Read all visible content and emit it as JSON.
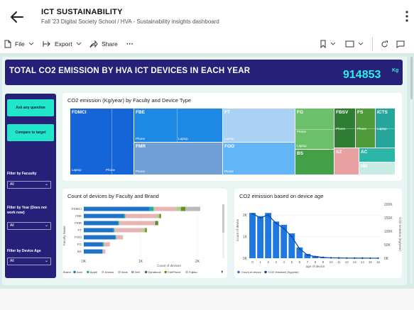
{
  "app": {
    "title": "ICT SUSTAINABILITY",
    "subtitle": "Fall '23 Digital Society School / HVA - Sustainability insights dashboard"
  },
  "toolbar": {
    "file_label": "File",
    "export_label": "Export",
    "share_label": "Share",
    "more_label": "···"
  },
  "banner": {
    "title": "TOTAL CO2 EMISSION BY HVA ICT DEVICES IN EACH YEAR",
    "value": "914853",
    "unit": "Kg"
  },
  "sidebar": {
    "ask_button": "Ask any question",
    "compare_button": "Compare to target",
    "faculty_filter_label": "Filter by Facuulty",
    "faculty_filter_value": "All",
    "year_filter_label": "Filter by Year (Does not work now)",
    "year_filter_value": "All",
    "age_filter_label": "Filter by Device Age",
    "age_filter_value": "All"
  },
  "treemap": {
    "title": "CO2 emission (Kg/year) by Faculty and Device Type",
    "tiles": [
      {
        "id": "fdmci",
        "label": "FDMCI",
        "subs": [
          "Laptop",
          "Phone"
        ],
        "color": "#1565d8"
      },
      {
        "id": "fbe",
        "label": "FBE",
        "subs": [
          "Phone",
          "Laptop"
        ],
        "color": "#1e88e5"
      },
      {
        "id": "fmr",
        "label": "FMR",
        "subs": [
          "Phone"
        ],
        "color": "#6f9fd6"
      },
      {
        "id": "ft",
        "label": "FT",
        "subs": [
          "Laptop"
        ],
        "color": "#a9d2f5"
      },
      {
        "id": "foo",
        "label": "FOO",
        "subs": [
          "Phone"
        ],
        "color": "#64b5f6"
      },
      {
        "id": "fg",
        "label": "FG",
        "subs": [
          "Phone",
          "Laptop"
        ],
        "color": "#6cc06a"
      },
      {
        "id": "bs",
        "label": "BS",
        "subs": [],
        "color": "#43a047"
      },
      {
        "id": "fbsv",
        "label": "FBSV",
        "subs": [
          "Phone"
        ],
        "color": "#2e7d32"
      },
      {
        "id": "fs",
        "label": "FS",
        "subs": [
          "Phone"
        ],
        "color": "#4f9a3a"
      },
      {
        "id": "icts",
        "label": "ICTS",
        "subs": [
          "Laptop"
        ],
        "color": "#26a69a"
      },
      {
        "id": "sz",
        "label": "SZ",
        "subs": [],
        "color": "#e8a0a0"
      },
      {
        "id": "ac",
        "label": "AC",
        "subs": [],
        "color": "#2bb7a8"
      },
      {
        "id": "hb",
        "label": "HB",
        "subs": [],
        "color": "#c8ebe6"
      }
    ]
  },
  "bar_chart": {
    "title": "Count of devices by Faculty and Brand",
    "ylabel": "Faculty Name",
    "xlabel": "Count of devices",
    "legend_title": "Brand",
    "brands": [
      {
        "name": "Acer",
        "color": "#1e73c8"
      },
      {
        "name": "Apple",
        "color": "#17b39c"
      },
      {
        "name": "Archos",
        "color": "#e8b5b5"
      },
      {
        "name": "Asus",
        "color": "#a8d08d"
      },
      {
        "name": "Dell",
        "color": "#7aa6d6"
      },
      {
        "name": "Dynabook",
        "color": "#3b7a3b"
      },
      {
        "name": "FairPhone",
        "color": "#6b8e23"
      },
      {
        "name": "Fujitsu",
        "color": "#bbbbbb"
      }
    ],
    "x_ticks": [
      "0K",
      "1K",
      "2K"
    ],
    "rows": [
      {
        "faculty": "FDMCI",
        "values": [
          1160,
          70,
          400,
          80,
          0,
          0,
          80,
          260
        ]
      },
      {
        "faculty": "FBE",
        "values": [
          700,
          30,
          560,
          40,
          0,
          0,
          30,
          0
        ]
      },
      {
        "faculty": "FMR",
        "values": [
          600,
          20,
          620,
          20,
          0,
          20,
          30,
          0
        ]
      },
      {
        "faculty": "FT",
        "values": [
          520,
          20,
          500,
          40,
          0,
          0,
          30,
          0
        ]
      },
      {
        "faculty": "FOO",
        "values": [
          550,
          20,
          120,
          0,
          0,
          0,
          0,
          0
        ]
      },
      {
        "faculty": "FG",
        "values": [
          330,
          20,
          110,
          0,
          0,
          0,
          0,
          0
        ]
      },
      {
        "faculty": "BS",
        "values": [
          330,
          0,
          50,
          0,
          0,
          0,
          0,
          0
        ]
      }
    ]
  },
  "combo_chart": {
    "title": "CO2 emission based on device age",
    "ylabel_left": "Count of device",
    "ylabel_right": "CO2 emission (Kg/year)",
    "xlabel": "age of device",
    "left_ticks": [
      "0K",
      "1K",
      "2K"
    ],
    "right_ticks": [
      "0K",
      "50K",
      "100K",
      "150K",
      "200K"
    ],
    "x_ticks": [
      "0",
      "1",
      "2",
      "3",
      "4",
      "5",
      "6",
      "7",
      "8",
      "9",
      "10",
      "11",
      "12",
      "13",
      "14",
      "15",
      "16"
    ],
    "legend_count": "Count of device",
    "legend_co2": "CO2 emission (Kg/year)",
    "bar_color": "#1f77e0",
    "line_color": "#0d47a1",
    "counts": [
      2100,
      1950,
      2100,
      1700,
      1550,
      1150,
      500,
      200,
      100,
      50,
      30,
      20,
      10,
      10,
      5,
      5,
      5
    ],
    "co2": [
      165000,
      150000,
      160000,
      130000,
      110000,
      80000,
      35000,
      12000,
      6000,
      3000,
      1500,
      1000,
      500,
      400,
      300,
      200,
      200
    ]
  }
}
